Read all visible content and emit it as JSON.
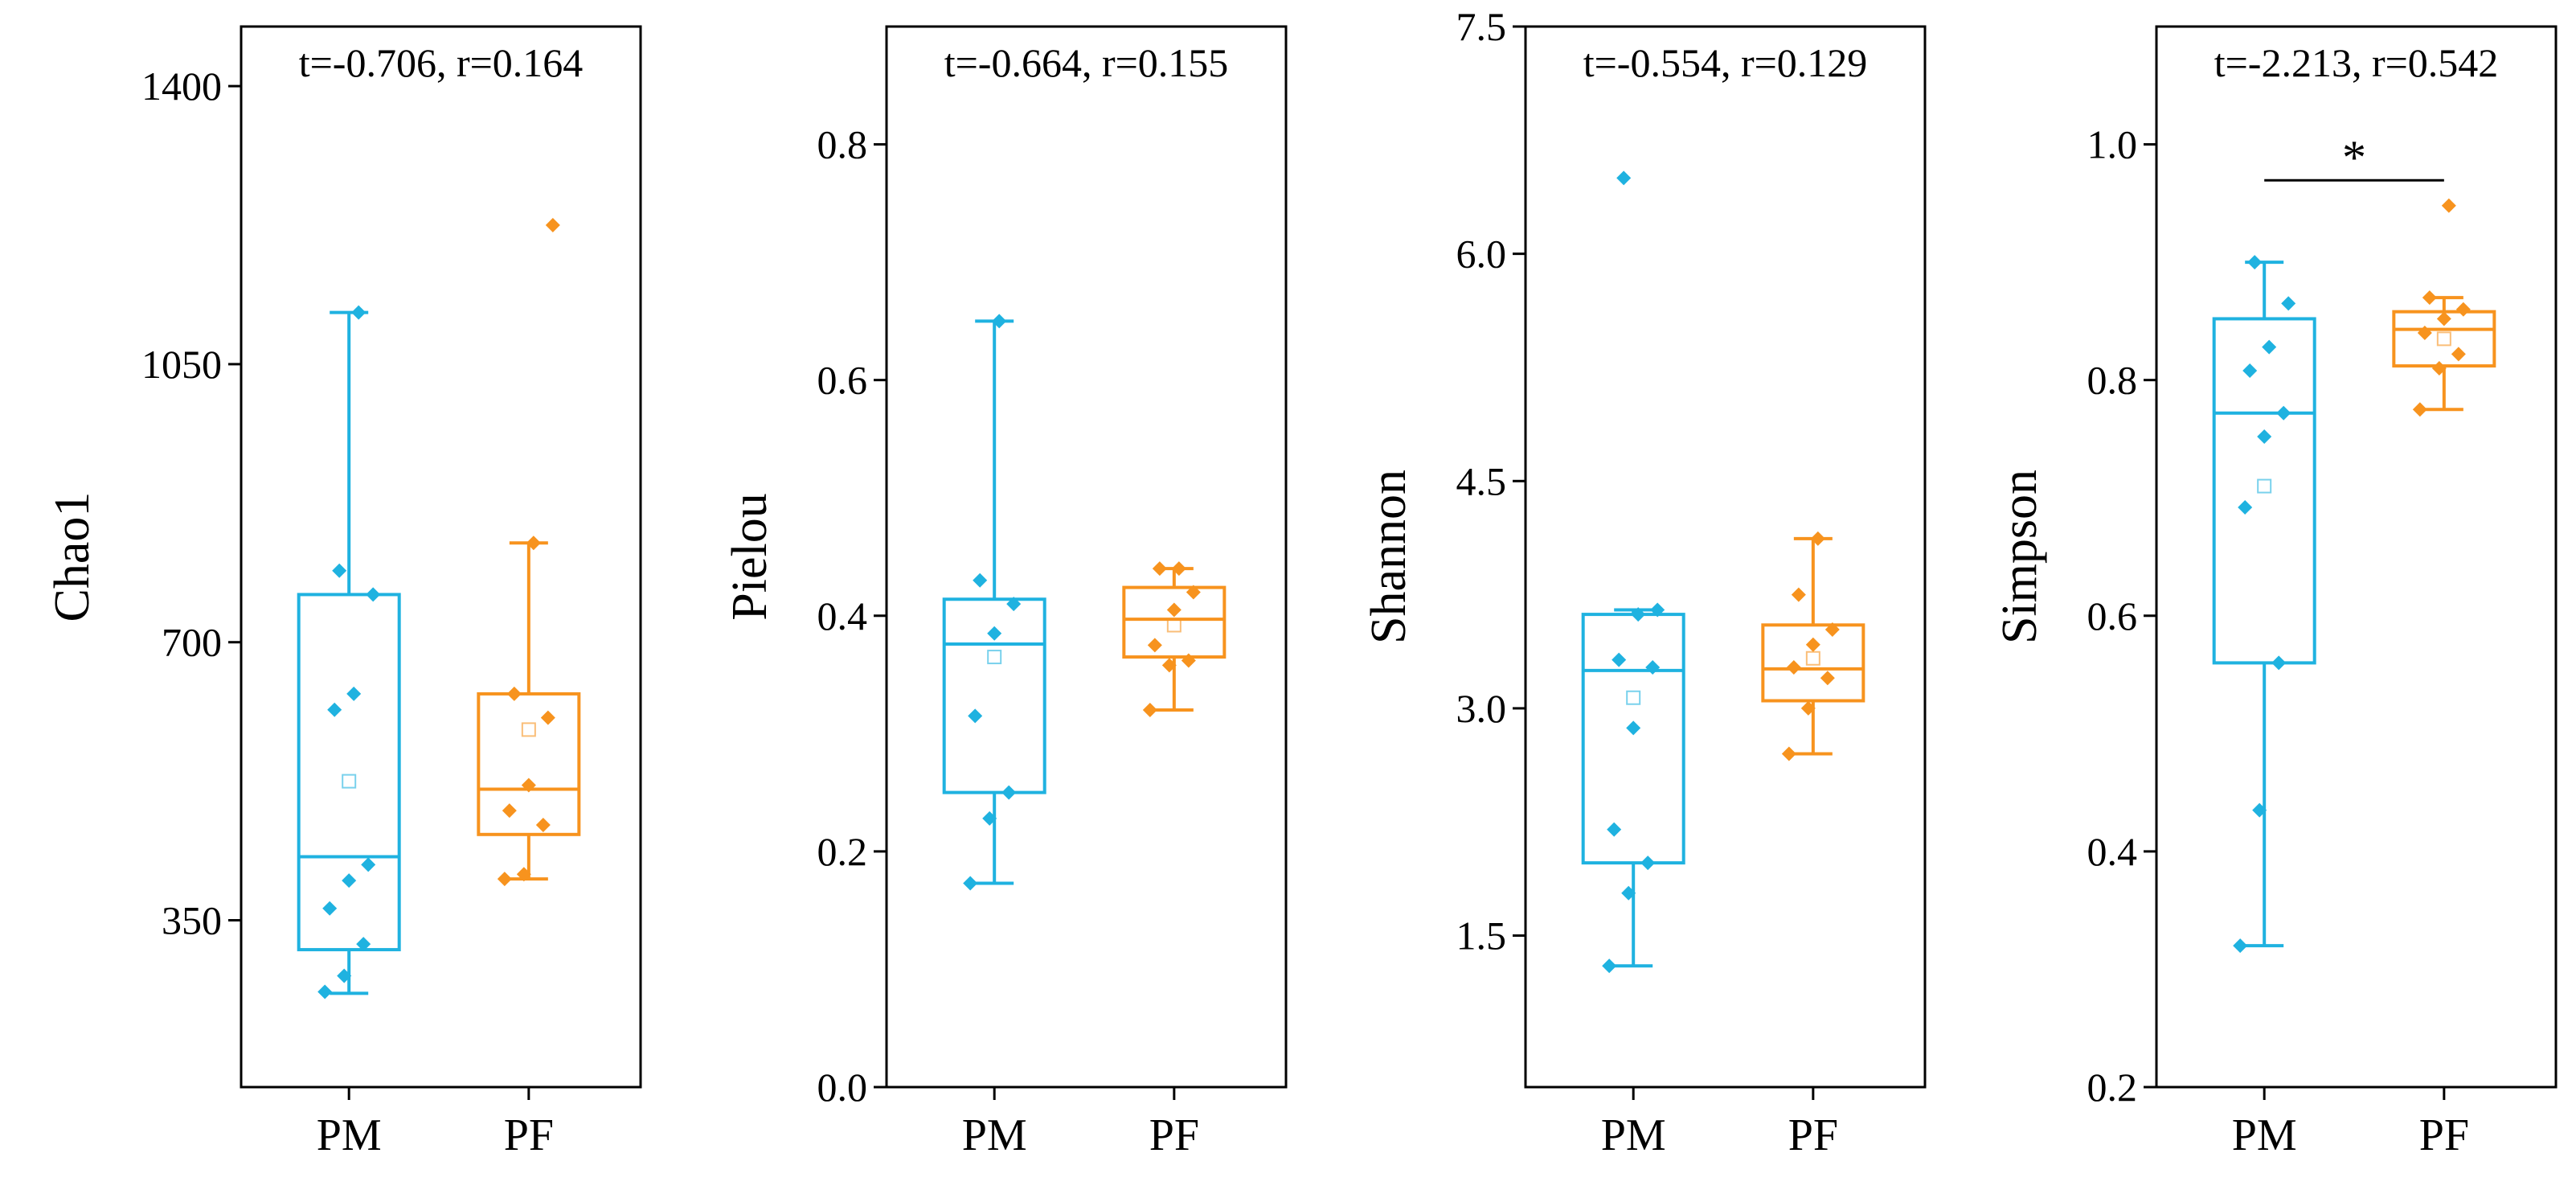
{
  "colors": {
    "PM": "#1FB2E0",
    "PF": "#F7931E",
    "axis": "#000000"
  },
  "chart_data": [
    {
      "type": "box",
      "ylabel": "Chao1",
      "annotation": "t=-0.706, r=0.164",
      "ylim": [
        140,
        1475
      ],
      "yticks": [
        350,
        700,
        1050,
        1400
      ],
      "tick_labels": [
        "350",
        "700",
        "1050",
        "1400"
      ],
      "categories": [
        "PM",
        "PF"
      ],
      "groups": [
        {
          "name": "PM",
          "whisker_low": 258,
          "q1": 313,
          "median": 430,
          "q3": 760,
          "whisker_high": 1115,
          "mean": 525,
          "points": [
            260,
            280,
            320,
            365,
            400,
            420,
            615,
            635,
            760,
            790,
            1115
          ]
        },
        {
          "name": "PF",
          "whisker_low": 402,
          "q1": 458,
          "median": 515,
          "q3": 635,
          "whisker_high": 825,
          "mean": 590,
          "points": [
            402,
            408,
            470,
            488,
            520,
            605,
            635,
            825,
            1225
          ]
        }
      ],
      "significance": null
    },
    {
      "type": "box",
      "ylabel": "Pielou",
      "annotation": "t=-0.664, r=0.155",
      "ylim": [
        0.0,
        0.9
      ],
      "yticks": [
        0.0,
        0.2,
        0.4,
        0.6,
        0.8
      ],
      "tick_labels": [
        "0.0",
        "0.2",
        "0.4",
        "0.6",
        "0.8"
      ],
      "categories": [
        "PM",
        "PF"
      ],
      "groups": [
        {
          "name": "PM",
          "whisker_low": 0.173,
          "q1": 0.25,
          "median": 0.376,
          "q3": 0.414,
          "whisker_high": 0.65,
          "mean": 0.365,
          "points": [
            0.173,
            0.228,
            0.25,
            0.315,
            0.385,
            0.41,
            0.43,
            0.65
          ]
        },
        {
          "name": "PF",
          "whisker_low": 0.32,
          "q1": 0.365,
          "median": 0.397,
          "q3": 0.424,
          "whisker_high": 0.44,
          "mean": 0.392,
          "points": [
            0.32,
            0.358,
            0.362,
            0.375,
            0.405,
            0.42,
            0.44,
            0.44
          ]
        }
      ],
      "significance": null
    },
    {
      "type": "box",
      "ylabel": "Shannon",
      "annotation": "t=-0.554, r=0.129",
      "ylim": [
        0.5,
        7.5
      ],
      "yticks": [
        1.5,
        3.0,
        4.5,
        6.0,
        7.5
      ],
      "tick_labels": [
        "1.5",
        "3.0",
        "4.5",
        "6.0",
        "7.5"
      ],
      "categories": [
        "PM",
        "PF"
      ],
      "groups": [
        {
          "name": "PM",
          "whisker_low": 1.3,
          "q1": 1.98,
          "median": 3.25,
          "q3": 3.62,
          "whisker_high": 3.65,
          "mean": 3.07,
          "points": [
            1.3,
            1.78,
            1.98,
            2.2,
            2.87,
            3.27,
            3.32,
            3.62,
            3.65,
            6.5
          ]
        },
        {
          "name": "PF",
          "whisker_low": 2.7,
          "q1": 3.05,
          "median": 3.26,
          "q3": 3.55,
          "whisker_high": 4.12,
          "mean": 3.33,
          "points": [
            2.7,
            3.0,
            3.2,
            3.27,
            3.42,
            3.52,
            3.75,
            4.12
          ]
        }
      ],
      "significance": null
    },
    {
      "type": "box",
      "ylabel": "Simpson",
      "annotation": "t=-2.213, r=0.542",
      "ylim": [
        0.2,
        1.1
      ],
      "yticks": [
        0.2,
        0.4,
        0.6,
        0.8,
        1.0
      ],
      "tick_labels": [
        "0.2",
        "0.4",
        "0.6",
        "0.8",
        "1.0"
      ],
      "categories": [
        "PM",
        "PF"
      ],
      "groups": [
        {
          "name": "PM",
          "whisker_low": 0.32,
          "q1": 0.56,
          "median": 0.772,
          "q3": 0.852,
          "whisker_high": 0.9,
          "mean": 0.71,
          "points": [
            0.32,
            0.435,
            0.56,
            0.692,
            0.752,
            0.772,
            0.808,
            0.828,
            0.865,
            0.9
          ]
        },
        {
          "name": "PF",
          "whisker_low": 0.775,
          "q1": 0.812,
          "median": 0.843,
          "q3": 0.858,
          "whisker_high": 0.87,
          "mean": 0.835,
          "points": [
            0.775,
            0.81,
            0.822,
            0.84,
            0.852,
            0.86,
            0.87,
            0.948
          ]
        }
      ],
      "significance": {
        "label": "*",
        "between": [
          "PM",
          "PF"
        ],
        "y": 0.99
      }
    }
  ]
}
